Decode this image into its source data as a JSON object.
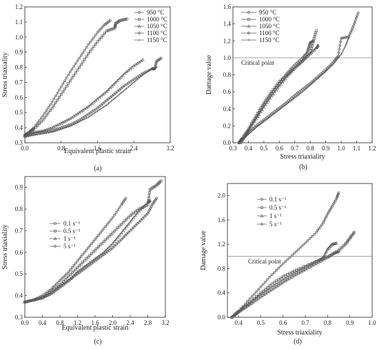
{
  "chart_data": [
    {
      "panel": "(a)",
      "type": "line",
      "xlabel": "Equivalent plastic strain",
      "ylabel": "Stress triaxiality",
      "xlim": [
        0.0,
        3.2
      ],
      "ylim": [
        0.3,
        1.2
      ],
      "xticks": [
        0.0,
        0.8,
        1.6,
        2.4,
        3.2
      ],
      "yticks": [
        0.3,
        0.4,
        0.5,
        0.6,
        0.7,
        0.8,
        0.9,
        1.0,
        1.1,
        1.2
      ],
      "xtick_labels": [
        "0.0",
        "0.8",
        "1.6",
        "2.4",
        "3.2"
      ],
      "ytick_labels": [
        "0.3",
        "0.4",
        "0.5",
        "0.6",
        "0.7",
        "0.8",
        "0.9",
        "1.0",
        "1.1",
        "1.2"
      ],
      "grid": false,
      "legend_position": "top-right",
      "series": [
        {
          "name": "950 °C",
          "x": [
            0.0,
            0.1,
            0.2,
            0.4,
            0.6,
            0.8,
            1.0,
            1.2,
            1.4,
            1.6,
            1.75,
            1.88
          ],
          "y": [
            0.35,
            0.37,
            0.4,
            0.48,
            0.57,
            0.67,
            0.77,
            0.86,
            0.95,
            1.03,
            1.08,
            1.11
          ]
        },
        {
          "name": "1000 °C",
          "x": [
            0.0,
            0.1,
            0.2,
            0.4,
            0.6,
            0.8,
            1.0,
            1.2,
            1.4,
            1.6,
            1.8,
            1.98,
            2.0,
            2.1,
            2.25
          ],
          "y": [
            0.35,
            0.37,
            0.39,
            0.45,
            0.53,
            0.62,
            0.71,
            0.8,
            0.89,
            0.97,
            1.04,
            1.06,
            1.09,
            1.11,
            1.12
          ]
        },
        {
          "name": "1050 °C",
          "x": [
            0.0,
            0.2,
            0.4,
            0.6,
            0.8,
            1.0,
            1.2,
            1.4,
            1.6,
            1.8,
            2.0,
            2.2,
            2.4,
            2.6
          ],
          "y": [
            0.35,
            0.37,
            0.38,
            0.4,
            0.43,
            0.46,
            0.5,
            0.54,
            0.59,
            0.64,
            0.7,
            0.76,
            0.81,
            0.85
          ]
        },
        {
          "name": "1100 °C",
          "x": [
            0.0,
            0.2,
            0.4,
            0.6,
            0.8,
            1.0,
            1.2,
            1.4,
            1.6,
            1.8,
            2.0,
            2.2,
            2.4,
            2.6,
            2.8,
            2.86,
            2.9,
            3.0
          ],
          "y": [
            0.34,
            0.36,
            0.37,
            0.38,
            0.4,
            0.42,
            0.45,
            0.49,
            0.53,
            0.58,
            0.63,
            0.68,
            0.72,
            0.76,
            0.79,
            0.79,
            0.84,
            0.86
          ]
        },
        {
          "name": "1150 °C",
          "x": [
            0.0,
            0.2,
            0.4,
            0.6,
            0.8,
            1.0,
            1.2,
            1.4,
            1.6,
            1.8,
            2.0,
            2.2,
            2.4,
            2.6,
            2.8,
            2.9
          ],
          "y": [
            0.34,
            0.35,
            0.36,
            0.37,
            0.39,
            0.41,
            0.44,
            0.47,
            0.51,
            0.55,
            0.6,
            0.65,
            0.7,
            0.75,
            0.79,
            0.8
          ]
        }
      ]
    },
    {
      "panel": "(b)",
      "type": "line",
      "xlabel": "Stress triaxiality",
      "ylabel": "Damage value",
      "xlim": [
        0.3,
        1.2
      ],
      "ylim": [
        0.0,
        1.6
      ],
      "xticks": [
        0.3,
        0.4,
        0.5,
        0.6,
        0.7,
        0.8,
        0.9,
        1.0,
        1.1,
        1.2
      ],
      "yticks": [
        0.0,
        0.2,
        0.4,
        0.6,
        0.8,
        1.0,
        1.2,
        1.4,
        1.6
      ],
      "xtick_labels": [
        "0.3",
        "0.4",
        "0.5",
        "0.6",
        "0.7",
        "0.8",
        "0.9",
        "1.0",
        "1.1",
        "1.2"
      ],
      "ytick_labels": [
        "0.0",
        "0.2",
        "0.4",
        "0.6",
        "0.8",
        "1.0",
        "1.2",
        "1.4",
        "1.6"
      ],
      "grid": false,
      "legend_position": "top-left",
      "reference_line": {
        "y": 1.0,
        "label": "Critical point"
      },
      "series": [
        {
          "name": "950 °C",
          "x": [
            0.34,
            0.36,
            0.4,
            0.45,
            0.5,
            0.55,
            0.6,
            0.65,
            0.7,
            0.75,
            0.78,
            0.79,
            0.8,
            0.82
          ],
          "y": [
            0.0,
            0.05,
            0.15,
            0.3,
            0.45,
            0.58,
            0.7,
            0.82,
            0.92,
            1.0,
            1.06,
            1.12,
            1.18,
            1.2
          ]
        },
        {
          "name": "1000 °C",
          "x": [
            0.34,
            0.36,
            0.4,
            0.45,
            0.5,
            0.55,
            0.6,
            0.65,
            0.7,
            0.75,
            0.8,
            0.82,
            0.84
          ],
          "y": [
            0.0,
            0.05,
            0.16,
            0.32,
            0.47,
            0.6,
            0.72,
            0.8,
            0.88,
            0.96,
            1.05,
            1.2,
            1.32
          ]
        },
        {
          "name": "1050 °C",
          "x": [
            0.35,
            0.37,
            0.4,
            0.45,
            0.5,
            0.55,
            0.6,
            0.65,
            0.7,
            0.75,
            0.8,
            0.84,
            0.85
          ],
          "y": [
            0.0,
            0.06,
            0.14,
            0.28,
            0.42,
            0.55,
            0.67,
            0.78,
            0.88,
            0.97,
            1.05,
            1.12,
            1.15
          ]
        },
        {
          "name": "1100 °C",
          "x": [
            0.34,
            0.37,
            0.4,
            0.45,
            0.5,
            0.55,
            0.6,
            0.65,
            0.7,
            0.75,
            0.8,
            0.85,
            0.9,
            0.95,
            0.98,
            1.0,
            1.05,
            1.08,
            1.11
          ],
          "y": [
            0.0,
            0.06,
            0.12,
            0.2,
            0.27,
            0.34,
            0.41,
            0.48,
            0.56,
            0.63,
            0.7,
            0.78,
            0.86,
            0.95,
            1.02,
            1.23,
            1.25,
            1.38,
            1.53
          ]
        },
        {
          "name": "1150 °C",
          "x": [
            0.34,
            0.37,
            0.4,
            0.45,
            0.5,
            0.55,
            0.6,
            0.65,
            0.7,
            0.75,
            0.8,
            0.85,
            0.9,
            0.95,
            1.0,
            1.03,
            1.05
          ],
          "y": [
            0.0,
            0.05,
            0.1,
            0.18,
            0.25,
            0.32,
            0.39,
            0.46,
            0.53,
            0.6,
            0.68,
            0.76,
            0.84,
            0.93,
            1.04,
            1.15,
            1.24
          ]
        }
      ]
    },
    {
      "panel": "(c)",
      "type": "line",
      "xlabel": "Equivalent plastic strain",
      "ylabel": "Stress triaxiality",
      "xlim": [
        0.0,
        3.2
      ],
      "ylim": [
        0.3,
        0.95
      ],
      "xticks": [
        0.0,
        0.4,
        0.8,
        1.2,
        1.6,
        2.0,
        2.4,
        2.8,
        3.2
      ],
      "yticks": [
        0.3,
        0.4,
        0.5,
        0.6,
        0.7,
        0.8,
        0.9
      ],
      "xtick_labels": [
        "0.0",
        "0.4",
        "0.8",
        "1.2",
        "1.6",
        "2.0",
        "2.4",
        "2.8",
        "3.2"
      ],
      "ytick_labels": [
        "0.3",
        "0.4",
        "0.5",
        "0.6",
        "0.7",
        "0.8",
        "0.9"
      ],
      "grid": false,
      "legend_position": "center-left",
      "series": [
        {
          "name": "0.1 s⁻¹",
          "x": [
            0.0,
            0.2,
            0.4,
            0.6,
            0.8,
            1.0,
            1.2,
            1.4,
            1.6,
            1.8,
            2.0,
            2.2,
            2.3
          ],
          "y": [
            0.37,
            0.38,
            0.4,
            0.43,
            0.47,
            0.51,
            0.56,
            0.61,
            0.66,
            0.71,
            0.76,
            0.82,
            0.85
          ]
        },
        {
          "name": "0.5 s⁻¹",
          "x": [
            0.0,
            0.2,
            0.4,
            0.6,
            0.8,
            1.0,
            1.2,
            1.4,
            1.6,
            1.8,
            2.0,
            2.2,
            2.4,
            2.6,
            2.8,
            2.85,
            3.0,
            3.1
          ],
          "y": [
            0.37,
            0.38,
            0.39,
            0.42,
            0.45,
            0.49,
            0.53,
            0.57,
            0.61,
            0.65,
            0.69,
            0.73,
            0.77,
            0.8,
            0.82,
            0.89,
            0.91,
            0.93
          ]
        },
        {
          "name": "1 s⁻¹",
          "x": [
            0.0,
            0.2,
            0.4,
            0.6,
            0.8,
            1.0,
            1.2,
            1.4,
            1.6,
            1.8,
            2.0,
            2.2,
            2.4,
            2.6,
            2.8,
            2.85
          ],
          "y": [
            0.37,
            0.38,
            0.39,
            0.41,
            0.44,
            0.47,
            0.51,
            0.54,
            0.57,
            0.6,
            0.64,
            0.69,
            0.74,
            0.79,
            0.83,
            0.84
          ]
        },
        {
          "name": "5 s⁻¹",
          "x": [
            0.0,
            0.2,
            0.4,
            0.6,
            0.8,
            1.0,
            1.2,
            1.4,
            1.6,
            1.8,
            2.0,
            2.2,
            2.4,
            2.6,
            2.8,
            2.9,
            3.0
          ],
          "y": [
            0.37,
            0.38,
            0.39,
            0.41,
            0.44,
            0.47,
            0.5,
            0.53,
            0.56,
            0.59,
            0.62,
            0.66,
            0.7,
            0.74,
            0.78,
            0.82,
            0.85
          ]
        }
      ]
    },
    {
      "panel": "(d)",
      "type": "line",
      "xlabel": "Stress triaxiality",
      "ylabel": "Damage value",
      "xlim": [
        0.35,
        1.0
      ],
      "ylim": [
        0.0,
        2.2
      ],
      "xticks": [
        0.4,
        0.5,
        0.6,
        0.7,
        0.8,
        0.9,
        1.0
      ],
      "yticks": [
        0.0,
        0.4,
        0.8,
        1.2,
        1.6,
        2.0
      ],
      "xtick_labels": [
        "0.4",
        "0.5",
        "0.6",
        "0.7",
        "0.8",
        "0.9",
        "1.0"
      ],
      "ytick_labels": [
        "0.0",
        "0.4",
        "0.8",
        "1.2",
        "1.6",
        "2.0"
      ],
      "grid": false,
      "legend_position": "top-left",
      "reference_line": {
        "y": 1.0,
        "label": "Critical point"
      },
      "series": [
        {
          "name": "0.1 s⁻¹",
          "x": [
            0.37,
            0.4,
            0.45,
            0.5,
            0.55,
            0.6,
            0.65,
            0.7,
            0.75,
            0.78,
            0.8,
            0.82,
            0.84,
            0.85
          ],
          "y": [
            0.0,
            0.1,
            0.3,
            0.5,
            0.7,
            0.88,
            1.05,
            1.22,
            1.4,
            1.55,
            1.7,
            1.82,
            1.95,
            2.05
          ]
        },
        {
          "name": "0.5 s⁻¹",
          "x": [
            0.37,
            0.4,
            0.45,
            0.5,
            0.55,
            0.6,
            0.65,
            0.7,
            0.75,
            0.8,
            0.85,
            0.88,
            0.9,
            0.92
          ],
          "y": [
            0.0,
            0.1,
            0.25,
            0.4,
            0.55,
            0.67,
            0.76,
            0.84,
            0.92,
            1.0,
            1.1,
            1.2,
            1.3,
            1.4
          ]
        },
        {
          "name": "1 s⁻¹",
          "x": [
            0.37,
            0.4,
            0.45,
            0.5,
            0.55,
            0.6,
            0.65,
            0.7,
            0.75,
            0.78,
            0.8,
            0.82,
            0.84
          ],
          "y": [
            0.0,
            0.09,
            0.23,
            0.37,
            0.5,
            0.62,
            0.72,
            0.82,
            0.92,
            0.98,
            1.12,
            1.2,
            1.22
          ]
        },
        {
          "name": "5 s⁻¹",
          "x": [
            0.37,
            0.4,
            0.45,
            0.5,
            0.55,
            0.6,
            0.65,
            0.7,
            0.75,
            0.8,
            0.83,
            0.85
          ],
          "y": [
            0.0,
            0.08,
            0.2,
            0.33,
            0.45,
            0.57,
            0.68,
            0.78,
            0.88,
            0.98,
            1.05,
            1.08
          ]
        }
      ]
    }
  ],
  "colors": {
    "series": "#555555",
    "axis": "#222222",
    "reference": "#888888"
  }
}
